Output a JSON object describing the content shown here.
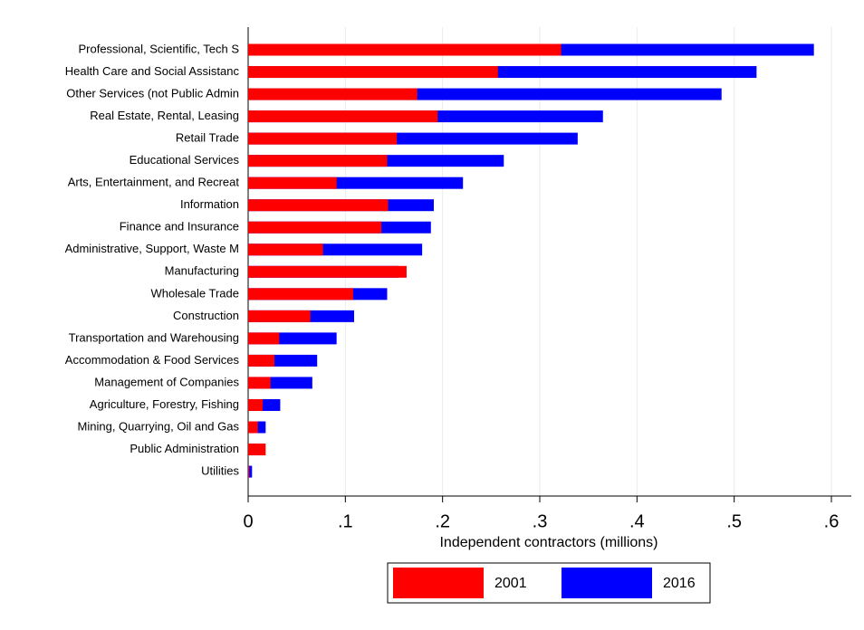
{
  "chart_data": {
    "type": "barh",
    "x_label": "Independent contractors (millions)",
    "categories": [
      "Professional, Scientific, Tech S",
      "Health Care and Social Assistanc",
      "Other Services (not Public Admin",
      "Real Estate, Rental, Leasing",
      "Retail Trade",
      "Educational Services",
      "Arts, Entertainment, and Recreat",
      "Information",
      "Finance and Insurance",
      "Administrative, Support, Waste M",
      "Manufacturing",
      "Wholesale Trade",
      "Construction",
      "Transportation and Warehousing",
      "Accommodation & Food Services",
      "Management of Companies",
      "Agriculture, Forestry, Fishing",
      "Mining, Quarrying, Oil and Gas",
      "Public Administration",
      "Utilities"
    ],
    "series": [
      {
        "name": "2016",
        "color": "#0000ff",
        "values": [
          0.582,
          0.523,
          0.487,
          0.365,
          0.339,
          0.263,
          0.221,
          0.191,
          0.188,
          0.179,
          0.155,
          0.143,
          0.109,
          0.091,
          0.071,
          0.066,
          0.033,
          0.018,
          0.015,
          0.004
        ]
      },
      {
        "name": "2001",
        "color": "#ff0000",
        "values": [
          0.322,
          0.257,
          0.174,
          0.195,
          0.153,
          0.143,
          0.091,
          0.144,
          0.137,
          0.077,
          0.163,
          0.108,
          0.064,
          0.032,
          0.027,
          0.023,
          0.015,
          0.01,
          0.018,
          0.001
        ]
      }
    ],
    "legend_order": [
      1,
      0
    ],
    "xlim": [
      0,
      0.6
    ],
    "xticks": [
      0,
      {
        "value": 0.1,
        "label": ".1"
      },
      {
        "value": 0.2,
        "label": ".2"
      },
      {
        "value": 0.3,
        "label": ".3"
      },
      {
        "value": 0.4,
        "label": ".4"
      },
      {
        "value": 0.5,
        "label": ".5"
      },
      {
        "value": 0.6,
        "label": ".6"
      }
    ],
    "grid": true
  }
}
